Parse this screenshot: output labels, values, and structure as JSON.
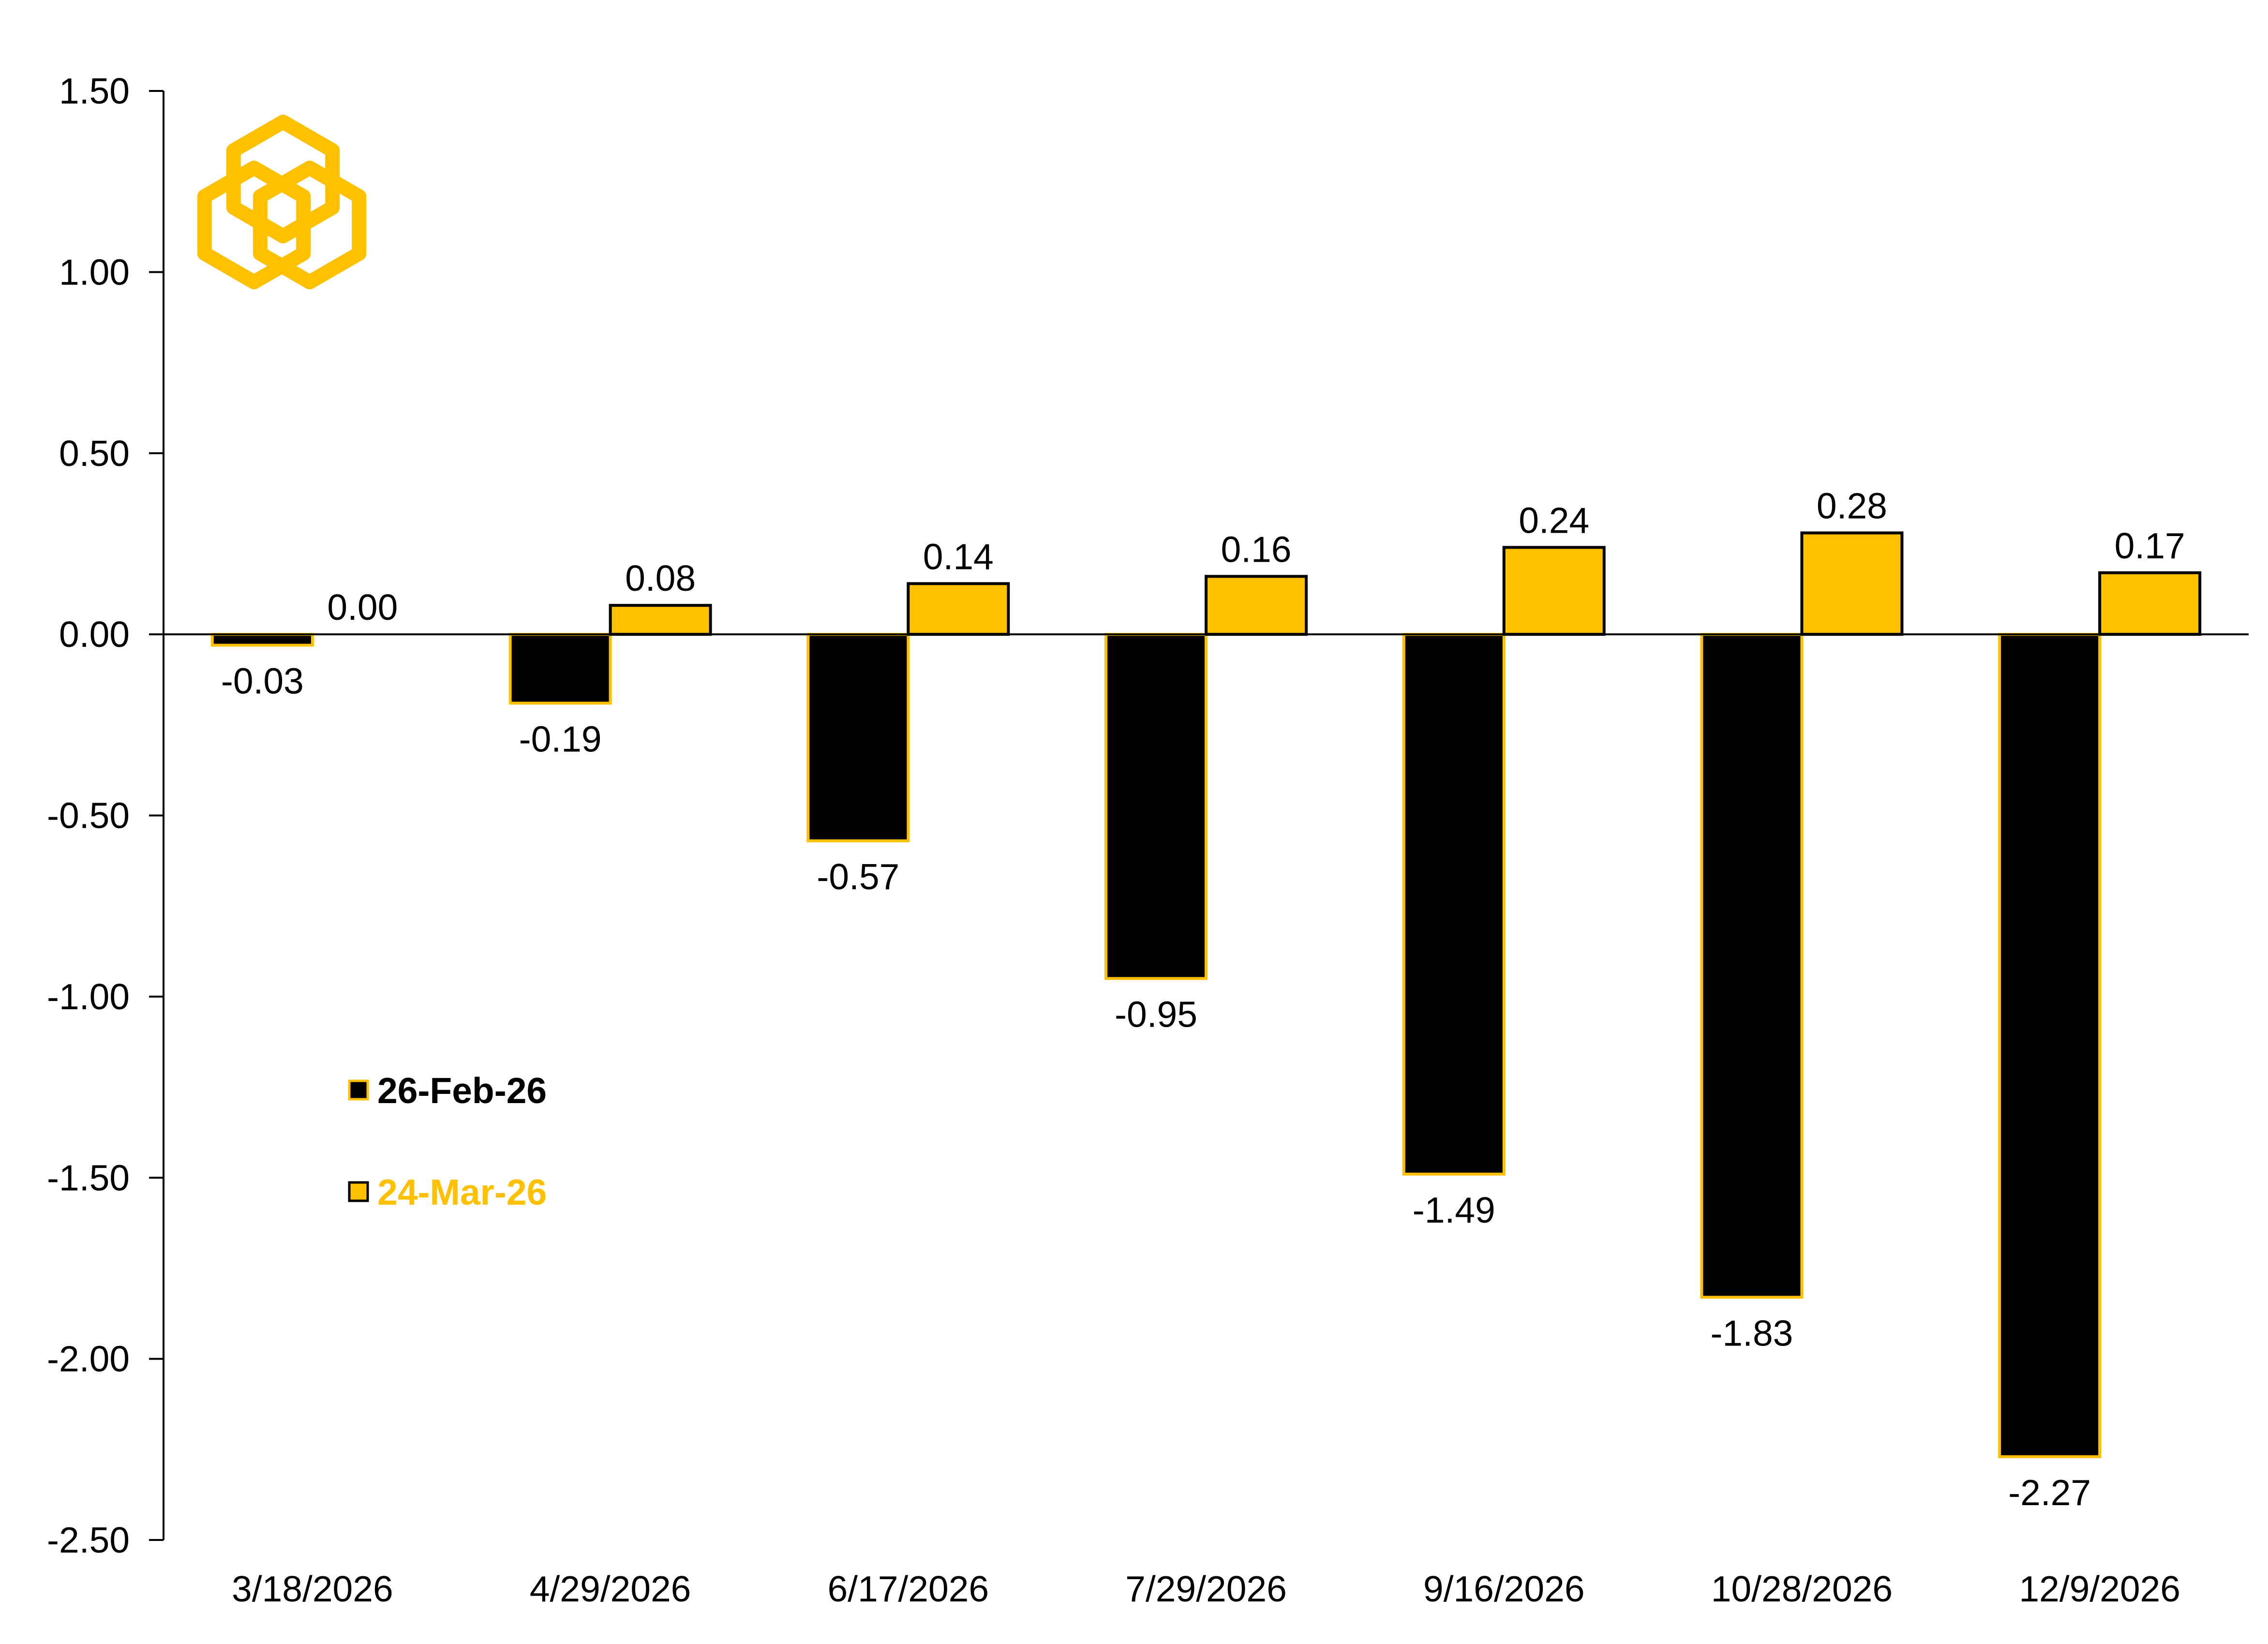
{
  "chart_data": {
    "type": "bar",
    "title": "",
    "xlabel": "",
    "ylabel": "",
    "ylim": [
      -2.5,
      1.5
    ],
    "yticks": [
      1.5,
      1.0,
      0.5,
      0.0,
      -0.5,
      -1.0,
      -1.5,
      -2.0,
      -2.5
    ],
    "ytick_labels": [
      "1.50",
      "1.00",
      "0.50",
      "0.00",
      "-0.50",
      "-1.00",
      "-1.50",
      "-2.00",
      "-2.50"
    ],
    "grid": false,
    "legend_position": "center-left",
    "categories": [
      "3/18/2026",
      "4/29/2026",
      "6/17/2026",
      "7/29/2026",
      "9/16/2026",
      "10/28/2026",
      "12/9/2026"
    ],
    "series": [
      {
        "name": "26-Feb-26",
        "values": [
          -0.03,
          -0.19,
          -0.57,
          -0.95,
          -1.49,
          -1.83,
          -2.27
        ],
        "labels": [
          "-0.03",
          "-0.19",
          "-0.57",
          "-0.95",
          "-1.49",
          "-1.83",
          "-2.27"
        ],
        "fill": "#000000",
        "stroke": "#FFC000",
        "legend_text_color": "#000000"
      },
      {
        "name": "24-Mar-26",
        "values": [
          0.0,
          0.08,
          0.14,
          0.16,
          0.24,
          0.28,
          0.17
        ],
        "labels": [
          "0.00",
          "0.08",
          "0.14",
          "0.16",
          "0.24",
          "0.28",
          "0.17"
        ],
        "fill": "#FFC000",
        "stroke": "#000000",
        "legend_text_color": "#FFC000"
      }
    ],
    "logo": {
      "name": "hexagon-logo-icon",
      "color": "#FFC000"
    }
  }
}
